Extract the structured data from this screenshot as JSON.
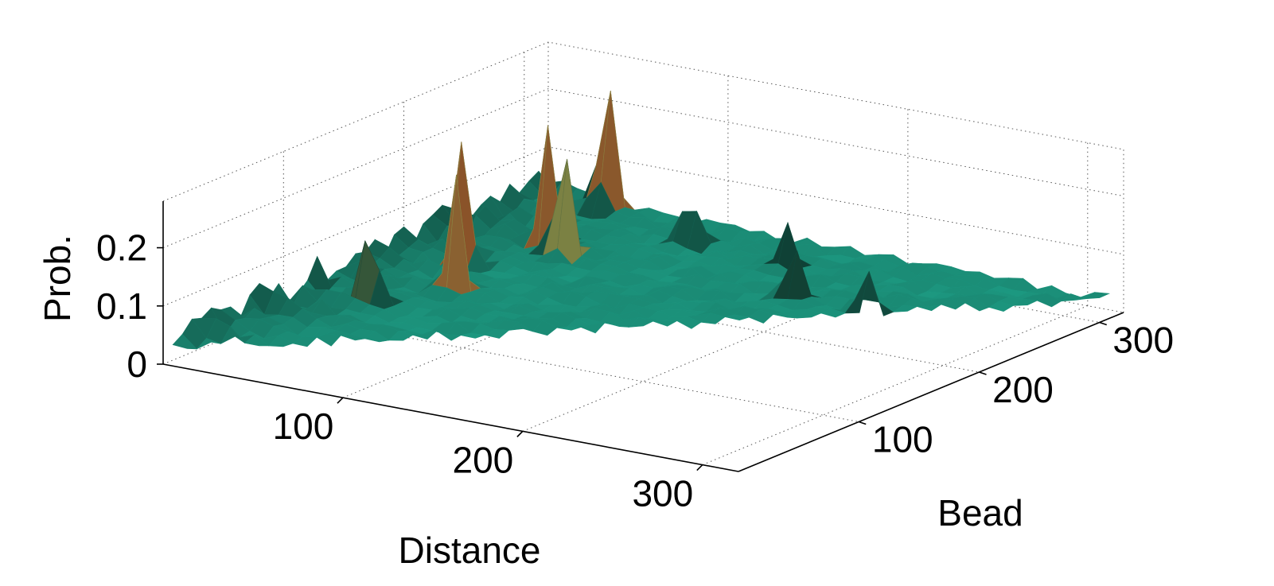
{
  "chart_data": {
    "type": "surface",
    "title": "",
    "xlabel": "Distance",
    "ylabel": "Bead",
    "zlabel": "Prob.",
    "xlim": [
      0,
      320
    ],
    "ylim": [
      0,
      320
    ],
    "zlim": [
      0,
      0.28
    ],
    "x_ticks": [
      "100",
      "200",
      "300"
    ],
    "y_ticks": [
      "100",
      "200",
      "300"
    ],
    "z_ticks": [
      "0",
      "0.1",
      "0.2"
    ],
    "grid": true,
    "colormap": "green-to-red (low to high)",
    "colors": {
      "low": "#1fa88e",
      "mid": "#0f3f34",
      "high": "#8b0000",
      "yellow": "#8a8a45"
    },
    "surface": {
      "description_free": true,
      "domain": "triangular region, distance <= bead",
      "peaks": [
        {
          "distance": 38,
          "bead": 310,
          "value": 0.27
        },
        {
          "distance": 48,
          "bead": 250,
          "value": 0.25
        },
        {
          "distance": 33,
          "bead": 200,
          "value": 0.22
        },
        {
          "distance": 55,
          "bead": 160,
          "value": 0.21
        },
        {
          "distance": 62,
          "bead": 240,
          "value": 0.19
        },
        {
          "distance": 35,
          "bead": 120,
          "value": 0.15
        },
        {
          "distance": 100,
          "bead": 290,
          "value": 0.12
        },
        {
          "distance": 190,
          "bead": 240,
          "value": 0.09
        },
        {
          "distance": 230,
          "bead": 240,
          "value": 0.08
        },
        {
          "distance": 160,
          "bead": 280,
          "value": 0.08
        }
      ],
      "baseline": 0.02
    }
  }
}
